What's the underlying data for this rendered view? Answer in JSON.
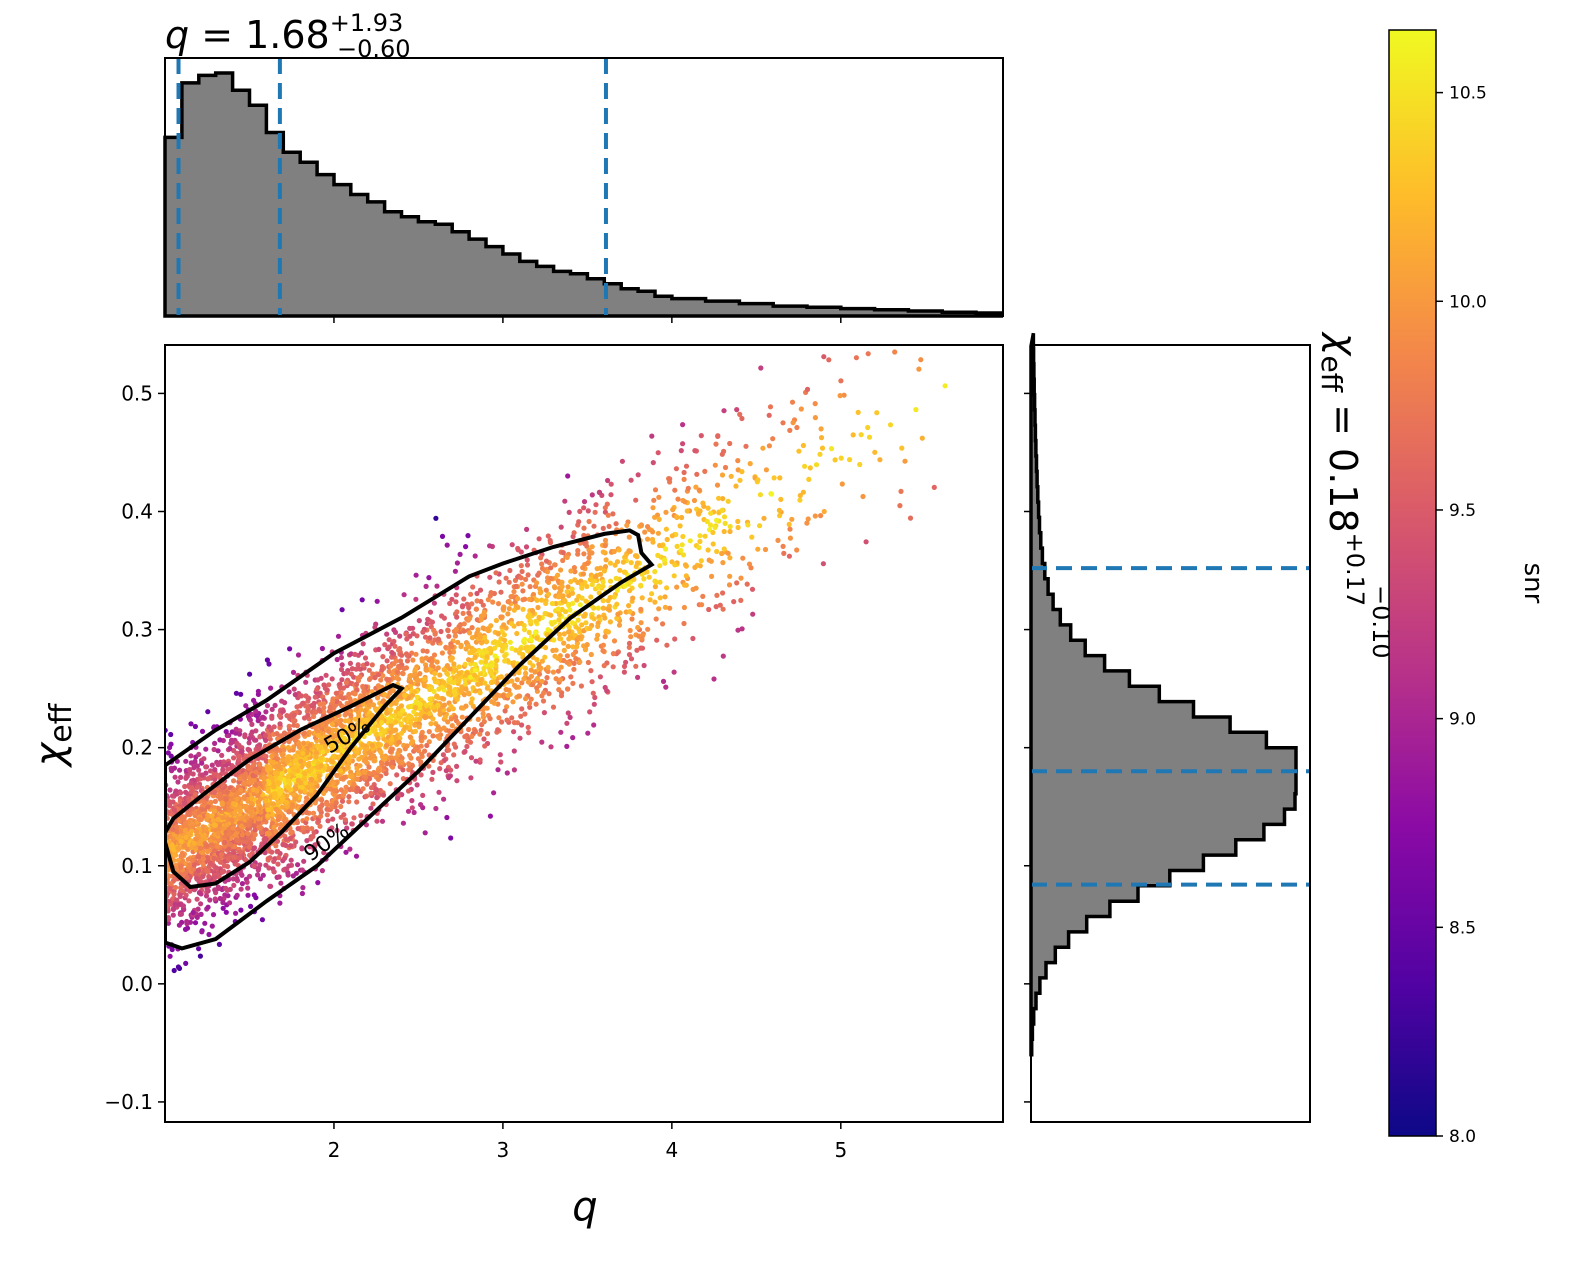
{
  "chart_data": {
    "type": "scatter",
    "title": "",
    "marginal_q": {
      "type": "histogram",
      "title_main": "q = 1.68",
      "title_sup": "+1.93",
      "title_sub": "−0.60",
      "median": 1.68,
      "lower": 1.08,
      "upper": 3.61,
      "bins_x": [
        1.0,
        1.1,
        1.2,
        1.3,
        1.4,
        1.5,
        1.6,
        1.7,
        1.8,
        1.9,
        2.0,
        2.1,
        2.2,
        2.3,
        2.4,
        2.5,
        2.6,
        2.7,
        2.8,
        2.9,
        3.0,
        3.1,
        3.2,
        3.3,
        3.4,
        3.5,
        3.6,
        3.7,
        3.8,
        3.9,
        4.0,
        4.2,
        4.4,
        4.6,
        4.8,
        5.0,
        5.2,
        5.4,
        5.6,
        5.8,
        5.95
      ],
      "counts": [
        0.72,
        0.94,
        0.97,
        0.98,
        0.91,
        0.85,
        0.74,
        0.66,
        0.62,
        0.57,
        0.53,
        0.49,
        0.46,
        0.42,
        0.4,
        0.38,
        0.37,
        0.34,
        0.31,
        0.28,
        0.25,
        0.22,
        0.2,
        0.18,
        0.17,
        0.15,
        0.13,
        0.11,
        0.1,
        0.08,
        0.07,
        0.06,
        0.05,
        0.04,
        0.035,
        0.03,
        0.025,
        0.02,
        0.015,
        0.012
      ]
    },
    "marginal_chi": {
      "type": "histogram",
      "title_main": "χ",
      "title_sub_eff": "eff",
      "title_value": " = 0.18",
      "title_sup": "+0.17",
      "title_sub": "−0.10",
      "median": 0.18,
      "lower": 0.084,
      "upper": 0.352
    },
    "x": {
      "label": "q",
      "lim": [
        1.0,
        5.96
      ],
      "ticks": [
        2,
        3,
        4,
        5
      ],
      "tick_labels": [
        "2",
        "3",
        "4",
        "5"
      ]
    },
    "y": {
      "label_main": "χ",
      "label_sub": "eff",
      "lim": [
        -0.117,
        0.541
      ],
      "ticks": [
        -0.1,
        0.0,
        0.1,
        0.2,
        0.3,
        0.4,
        0.5
      ],
      "tick_labels": [
        "−0.1",
        "0.0",
        "0.1",
        "0.2",
        "0.3",
        "0.4",
        "0.5"
      ]
    },
    "contours": [
      {
        "label": "50%",
        "points": [
          [
            1.0,
            0.12
          ],
          [
            1.05,
            0.095
          ],
          [
            1.15,
            0.082
          ],
          [
            1.3,
            0.085
          ],
          [
            1.5,
            0.103
          ],
          [
            1.7,
            0.13
          ],
          [
            1.9,
            0.16
          ],
          [
            2.1,
            0.2
          ],
          [
            2.3,
            0.235
          ],
          [
            2.4,
            0.25
          ],
          [
            2.35,
            0.253
          ],
          [
            2.1,
            0.235
          ],
          [
            1.8,
            0.215
          ],
          [
            1.5,
            0.19
          ],
          [
            1.25,
            0.163
          ],
          [
            1.05,
            0.14
          ],
          [
            1.0,
            0.128
          ]
        ]
      },
      {
        "label": "90%",
        "points": [
          [
            1.0,
            0.035
          ],
          [
            1.1,
            0.03
          ],
          [
            1.3,
            0.038
          ],
          [
            1.6,
            0.07
          ],
          [
            1.9,
            0.1
          ],
          [
            2.2,
            0.14
          ],
          [
            2.5,
            0.18
          ],
          [
            2.8,
            0.225
          ],
          [
            3.1,
            0.27
          ],
          [
            3.4,
            0.31
          ],
          [
            3.7,
            0.34
          ],
          [
            3.88,
            0.355
          ],
          [
            3.82,
            0.365
          ],
          [
            3.8,
            0.38
          ],
          [
            3.75,
            0.384
          ],
          [
            3.6,
            0.381
          ],
          [
            3.3,
            0.37
          ],
          [
            3.0,
            0.356
          ],
          [
            2.8,
            0.345
          ],
          [
            2.4,
            0.31
          ],
          [
            2.0,
            0.28
          ],
          [
            1.6,
            0.24
          ],
          [
            1.3,
            0.215
          ],
          [
            1.1,
            0.195
          ],
          [
            1.0,
            0.185
          ]
        ]
      }
    ],
    "colorbar": {
      "label": "snr",
      "lim": [
        8.0,
        10.65
      ],
      "ticks": [
        8.0,
        8.5,
        9.0,
        9.5,
        10.0,
        10.5
      ],
      "tick_labels": [
        "8.0",
        "8.5",
        "9.0",
        "9.5",
        "10.0",
        "10.5"
      ],
      "colormap": "plasma"
    },
    "colors": {
      "hist_fill": "#808080",
      "dash_line": "#1f77b4",
      "contour": "#000000"
    }
  }
}
